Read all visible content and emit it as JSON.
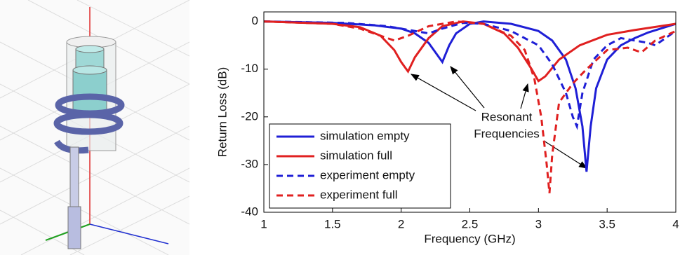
{
  "chart_data": {
    "type": "line",
    "xlabel": "Frequency (GHz)",
    "ylabel": "Return Loss (dB)",
    "xlim": [
      1,
      4
    ],
    "xticks": [
      1,
      1.5,
      2,
      2.5,
      3,
      3.5,
      4
    ],
    "ylim": [
      -40,
      2
    ],
    "yticks": [
      0,
      -10,
      -20,
      -30,
      -40
    ],
    "legend": "lower left",
    "annotation": [
      "Resonant",
      "Frequencies"
    ],
    "series": [
      {
        "name": "simulation empty",
        "color": "#1f1fd6",
        "linestyle": "solid",
        "x": [
          1,
          1.5,
          1.8,
          2.0,
          2.1,
          2.2,
          2.25,
          2.3,
          2.35,
          2.4,
          2.5,
          2.6,
          2.8,
          3.0,
          3.1,
          3.2,
          3.27,
          3.32,
          3.35,
          3.38,
          3.42,
          3.5,
          3.6,
          3.7,
          3.8,
          4.0
        ],
        "values": [
          0,
          -0.3,
          -0.8,
          -1.5,
          -2.5,
          -4.5,
          -6.5,
          -8.5,
          -5,
          -2.5,
          -0.5,
          0,
          -0.5,
          -2,
          -4,
          -8,
          -14,
          -22,
          -31.5,
          -22,
          -14,
          -8,
          -5,
          -3.5,
          -2.3,
          -0.5
        ]
      },
      {
        "name": "simulation full",
        "color": "#e02020",
        "linestyle": "solid",
        "x": [
          1,
          1.5,
          1.7,
          1.85,
          1.95,
          2.0,
          2.05,
          2.1,
          2.2,
          2.3,
          2.45,
          2.6,
          2.75,
          2.85,
          2.95,
          3.0,
          3.05,
          3.15,
          3.3,
          3.5,
          3.7,
          4.0
        ],
        "values": [
          0,
          -0.5,
          -1.2,
          -3,
          -6,
          -8.5,
          -10.5,
          -7.5,
          -3.5,
          -1,
          0,
          -0.5,
          -2.5,
          -5.5,
          -10,
          -12.5,
          -11.5,
          -8,
          -5,
          -2.8,
          -1.8,
          -0.5
        ]
      },
      {
        "name": "experiment empty",
        "color": "#1f1fd6",
        "linestyle": "dashed",
        "x": [
          1,
          1.6,
          1.9,
          2.1,
          2.2,
          2.3,
          2.45,
          2.6,
          2.8,
          3.0,
          3.1,
          3.2,
          3.25,
          3.28,
          3.32,
          3.4,
          3.5,
          3.6,
          3.8,
          3.85,
          3.9,
          4.0
        ],
        "values": [
          0,
          -0.3,
          -1,
          -2,
          -2.5,
          -1.5,
          -0.3,
          -0.5,
          -2,
          -5,
          -9,
          -15,
          -20,
          -22,
          -15,
          -8,
          -5,
          -3.5,
          -4.5,
          -5,
          -4,
          -2
        ]
      },
      {
        "name": "experiment full",
        "color": "#e02020",
        "linestyle": "dashed",
        "x": [
          1,
          1.5,
          1.7,
          1.85,
          1.95,
          2.05,
          2.2,
          2.4,
          2.6,
          2.8,
          2.9,
          2.97,
          3.02,
          3.06,
          3.08,
          3.1,
          3.15,
          3.25,
          3.35,
          3.5,
          3.65,
          3.75,
          3.85,
          4.0
        ],
        "values": [
          0,
          -0.5,
          -1.5,
          -3,
          -4,
          -3,
          -1,
          0,
          -0.5,
          -3,
          -6,
          -12,
          -20,
          -30,
          -36,
          -28,
          -17,
          -13,
          -10,
          -6,
          -5.5,
          -6.5,
          -4,
          -2
        ]
      }
    ]
  }
}
